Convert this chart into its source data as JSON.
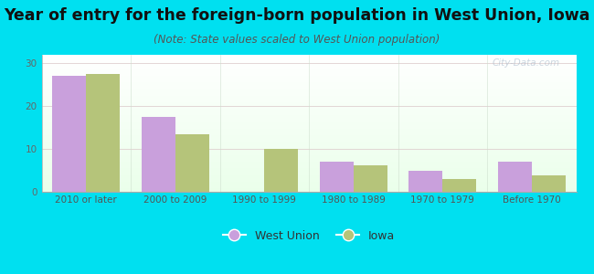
{
  "title": "Year of entry for the foreign-born population in West Union, Iowa",
  "subtitle": "(Note: State values scaled to West Union population)",
  "categories": [
    "2010 or later",
    "2000 to 2009",
    "1990 to 1999",
    "1980 to 1989",
    "1970 to 1979",
    "Before 1970"
  ],
  "west_union": [
    27,
    17.5,
    0,
    7,
    5,
    7
  ],
  "iowa": [
    27.5,
    13.5,
    10,
    6.2,
    3,
    3.8
  ],
  "west_union_color": "#c9a0dc",
  "iowa_color": "#b5c47a",
  "background_outer": "#00e0f0",
  "background_inner_top": "#e8f5e9",
  "background_inner_bottom": "#d0ead5",
  "ylim": [
    0,
    32
  ],
  "yticks": [
    0,
    10,
    20,
    30
  ],
  "bar_width": 0.38,
  "title_fontsize": 12.5,
  "subtitle_fontsize": 8.5,
  "tick_fontsize": 7.5,
  "legend_fontsize": 9,
  "watermark": "City-Data.com"
}
